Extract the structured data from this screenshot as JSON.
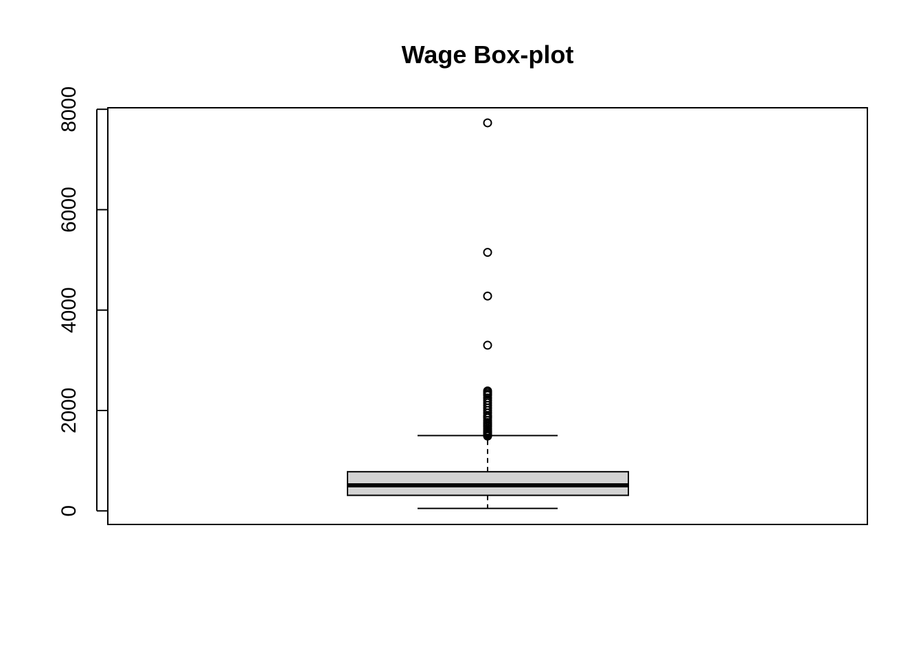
{
  "chart_data": {
    "type": "boxplot",
    "title": "Wage Box-plot",
    "xlabel": "",
    "ylabel": "",
    "ylim": [
      -270,
      8030
    ],
    "y_ticks": [
      "0",
      "2000",
      "4000",
      "6000",
      "8000"
    ],
    "box": {
      "whisker_low": 50,
      "q1": 310,
      "median": 510,
      "q3": 780,
      "whisker_high": 1500
    },
    "outliers": [
      1490,
      1500,
      1520,
      1540,
      1560,
      1580,
      1600,
      1640,
      1680,
      1700,
      1730,
      1760,
      1800,
      1850,
      1880,
      1900,
      1950,
      2000,
      2050,
      2100,
      2150,
      2200,
      2250,
      2300,
      2330,
      2360,
      2390,
      3300,
      4280,
      5150,
      7730
    ],
    "box_fill": "#d3d3d3",
    "line_color": "#000000",
    "grid": false,
    "legend": "none"
  }
}
